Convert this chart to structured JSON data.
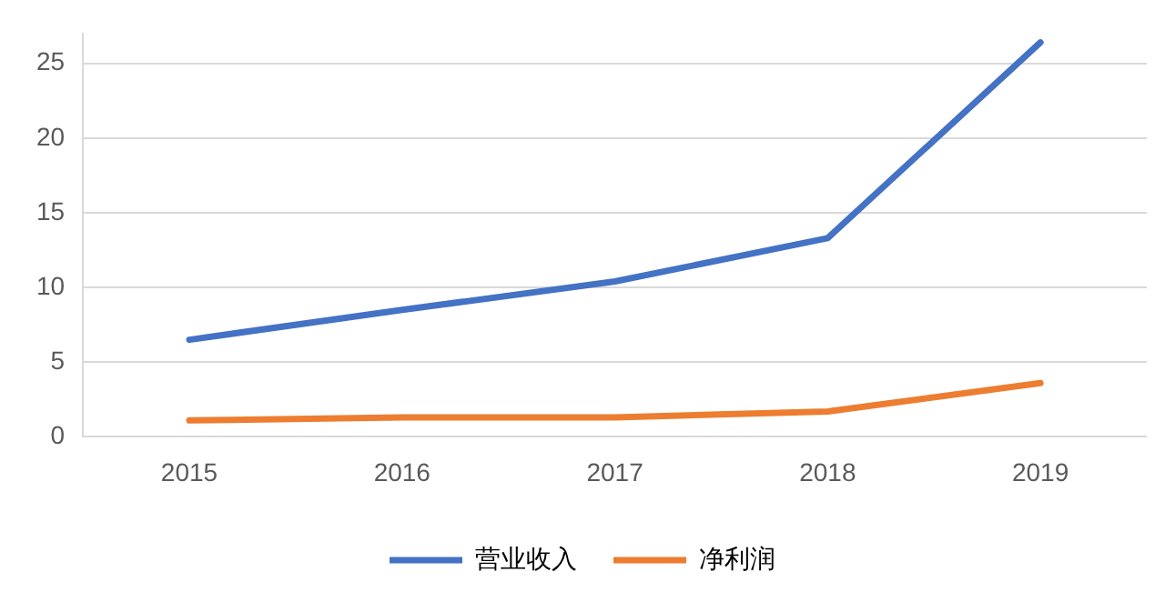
{
  "chart_data": {
    "type": "line",
    "categories": [
      "2015",
      "2016",
      "2017",
      "2018",
      "2019"
    ],
    "series": [
      {
        "name": "营业收入",
        "color": "#4472c4",
        "values": [
          6.5,
          8.5,
          10.4,
          13.3,
          26.4
        ]
      },
      {
        "name": "净利润",
        "color": "#ed7d31",
        "values": [
          1.1,
          1.3,
          1.3,
          1.7,
          3.6
        ]
      }
    ],
    "ylim": [
      0,
      27
    ],
    "yticks": [
      0,
      5,
      10,
      15,
      20,
      25
    ],
    "grid": "y",
    "legend": "bottom",
    "marker": "none",
    "line_style": "solid"
  }
}
